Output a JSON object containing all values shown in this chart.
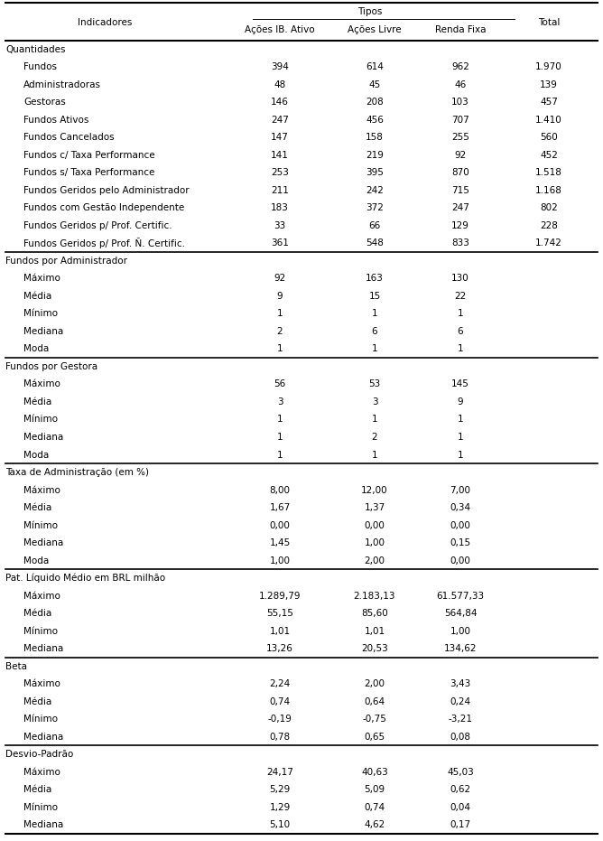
{
  "col_headers": [
    "Indicadores",
    "Ações IB. Ativo",
    "Ações Livre",
    "Renda Fixa",
    "Total"
  ],
  "rows": [
    {
      "label": "Quantidades",
      "indent": 0,
      "section_header": true,
      "vals": [
        "",
        "",
        "",
        ""
      ]
    },
    {
      "label": "Fundos",
      "indent": 1,
      "section_header": false,
      "vals": [
        "394",
        "614",
        "962",
        "1.970"
      ]
    },
    {
      "label": "Administradoras",
      "indent": 1,
      "section_header": false,
      "vals": [
        "48",
        "45",
        "46",
        "139"
      ]
    },
    {
      "label": "Gestoras",
      "indent": 1,
      "section_header": false,
      "vals": [
        "146",
        "208",
        "103",
        "457"
      ]
    },
    {
      "label": "Fundos Ativos",
      "indent": 1,
      "section_header": false,
      "vals": [
        "247",
        "456",
        "707",
        "1.410"
      ]
    },
    {
      "label": "Fundos Cancelados",
      "indent": 1,
      "section_header": false,
      "vals": [
        "147",
        "158",
        "255",
        "560"
      ]
    },
    {
      "label": "Fundos c/ Taxa Performance",
      "indent": 1,
      "section_header": false,
      "vals": [
        "141",
        "219",
        "92",
        "452"
      ]
    },
    {
      "label": "Fundos s/ Taxa Performance",
      "indent": 1,
      "section_header": false,
      "vals": [
        "253",
        "395",
        "870",
        "1.518"
      ]
    },
    {
      "label": "Fundos Geridos pelo Administrador",
      "indent": 1,
      "section_header": false,
      "vals": [
        "211",
        "242",
        "715",
        "1.168"
      ]
    },
    {
      "label": "Fundos com Gestão Independente",
      "indent": 1,
      "section_header": false,
      "vals": [
        "183",
        "372",
        "247",
        "802"
      ]
    },
    {
      "label": "Fundos Geridos p/ Prof. Certific.",
      "indent": 1,
      "section_header": false,
      "vals": [
        "33",
        "66",
        "129",
        "228"
      ]
    },
    {
      "label": "Fundos Geridos p/ Prof. Ñ. Certific.",
      "indent": 1,
      "section_header": false,
      "vals": [
        "361",
        "548",
        "833",
        "1.742"
      ]
    },
    {
      "label": "Fundos por Administrador",
      "indent": 0,
      "section_header": true,
      "vals": [
        "",
        "",
        "",
        ""
      ]
    },
    {
      "label": "Máximo",
      "indent": 1,
      "section_header": false,
      "vals": [
        "92",
        "163",
        "130",
        ""
      ]
    },
    {
      "label": "Média",
      "indent": 1,
      "section_header": false,
      "vals": [
        "9",
        "15",
        "22",
        ""
      ]
    },
    {
      "label": "Mínimo",
      "indent": 1,
      "section_header": false,
      "vals": [
        "1",
        "1",
        "1",
        ""
      ]
    },
    {
      "label": "Mediana",
      "indent": 1,
      "section_header": false,
      "vals": [
        "2",
        "6",
        "6",
        ""
      ]
    },
    {
      "label": "Moda",
      "indent": 1,
      "section_header": false,
      "vals": [
        "1",
        "1",
        "1",
        ""
      ]
    },
    {
      "label": "Fundos por Gestora",
      "indent": 0,
      "section_header": true,
      "vals": [
        "",
        "",
        "",
        ""
      ]
    },
    {
      "label": "Máximo",
      "indent": 1,
      "section_header": false,
      "vals": [
        "56",
        "53",
        "145",
        ""
      ]
    },
    {
      "label": "Média",
      "indent": 1,
      "section_header": false,
      "vals": [
        "3",
        "3",
        "9",
        ""
      ]
    },
    {
      "label": "Mínimo",
      "indent": 1,
      "section_header": false,
      "vals": [
        "1",
        "1",
        "1",
        ""
      ]
    },
    {
      "label": "Mediana",
      "indent": 1,
      "section_header": false,
      "vals": [
        "1",
        "2",
        "1",
        ""
      ]
    },
    {
      "label": "Moda",
      "indent": 1,
      "section_header": false,
      "vals": [
        "1",
        "1",
        "1",
        ""
      ]
    },
    {
      "label": "Taxa de Administração (em %)",
      "indent": 0,
      "section_header": true,
      "vals": [
        "",
        "",
        "",
        ""
      ]
    },
    {
      "label": "Máximo",
      "indent": 1,
      "section_header": false,
      "vals": [
        "8,00",
        "12,00",
        "7,00",
        ""
      ]
    },
    {
      "label": "Média",
      "indent": 1,
      "section_header": false,
      "vals": [
        "1,67",
        "1,37",
        "0,34",
        ""
      ]
    },
    {
      "label": "Mínimo",
      "indent": 1,
      "section_header": false,
      "vals": [
        "0,00",
        "0,00",
        "0,00",
        ""
      ]
    },
    {
      "label": "Mediana",
      "indent": 1,
      "section_header": false,
      "vals": [
        "1,45",
        "1,00",
        "0,15",
        ""
      ]
    },
    {
      "label": "Moda",
      "indent": 1,
      "section_header": false,
      "vals": [
        "1,00",
        "2,00",
        "0,00",
        ""
      ]
    },
    {
      "label": "Pat. Líquido Médio em BRL milhão",
      "indent": 0,
      "section_header": true,
      "vals": [
        "",
        "",
        "",
        ""
      ]
    },
    {
      "label": "Máximo",
      "indent": 1,
      "section_header": false,
      "vals": [
        "1.289,79",
        "2.183,13",
        "61.577,33",
        ""
      ]
    },
    {
      "label": "Média",
      "indent": 1,
      "section_header": false,
      "vals": [
        "55,15",
        "85,60",
        "564,84",
        ""
      ]
    },
    {
      "label": "Mínimo",
      "indent": 1,
      "section_header": false,
      "vals": [
        "1,01",
        "1,01",
        "1,00",
        ""
      ]
    },
    {
      "label": "Mediana",
      "indent": 1,
      "section_header": false,
      "vals": [
        "13,26",
        "20,53",
        "134,62",
        ""
      ]
    },
    {
      "label": "Beta",
      "indent": 0,
      "section_header": true,
      "vals": [
        "",
        "",
        "",
        ""
      ]
    },
    {
      "label": "Máximo",
      "indent": 1,
      "section_header": false,
      "vals": [
        "2,24",
        "2,00",
        "3,43",
        ""
      ]
    },
    {
      "label": "Média",
      "indent": 1,
      "section_header": false,
      "vals": [
        "0,74",
        "0,64",
        "0,24",
        ""
      ]
    },
    {
      "label": "Mínimo",
      "indent": 1,
      "section_header": false,
      "vals": [
        "-0,19",
        "-0,75",
        "-3,21",
        ""
      ]
    },
    {
      "label": "Mediana",
      "indent": 1,
      "section_header": false,
      "vals": [
        "0,78",
        "0,65",
        "0,08",
        ""
      ]
    },
    {
      "label": "Desvio-Padrão",
      "indent": 0,
      "section_header": true,
      "vals": [
        "",
        "",
        "",
        ""
      ]
    },
    {
      "label": "Máximo",
      "indent": 1,
      "section_header": false,
      "vals": [
        "24,17",
        "40,63",
        "45,03",
        ""
      ]
    },
    {
      "label": "Média",
      "indent": 1,
      "section_header": false,
      "vals": [
        "5,29",
        "5,09",
        "0,62",
        ""
      ]
    },
    {
      "label": "Mínimo",
      "indent": 1,
      "section_header": false,
      "vals": [
        "1,29",
        "0,74",
        "0,04",
        ""
      ]
    },
    {
      "label": "Mediana",
      "indent": 1,
      "section_header": false,
      "vals": [
        "5,10",
        "4,62",
        "0,17",
        ""
      ]
    }
  ],
  "section_separators_before": [
    12,
    18,
    24,
    30,
    35,
    40
  ],
  "bg_color": "#ffffff",
  "text_color": "#000000",
  "font_size": 7.5,
  "header_font_size": 7.5
}
